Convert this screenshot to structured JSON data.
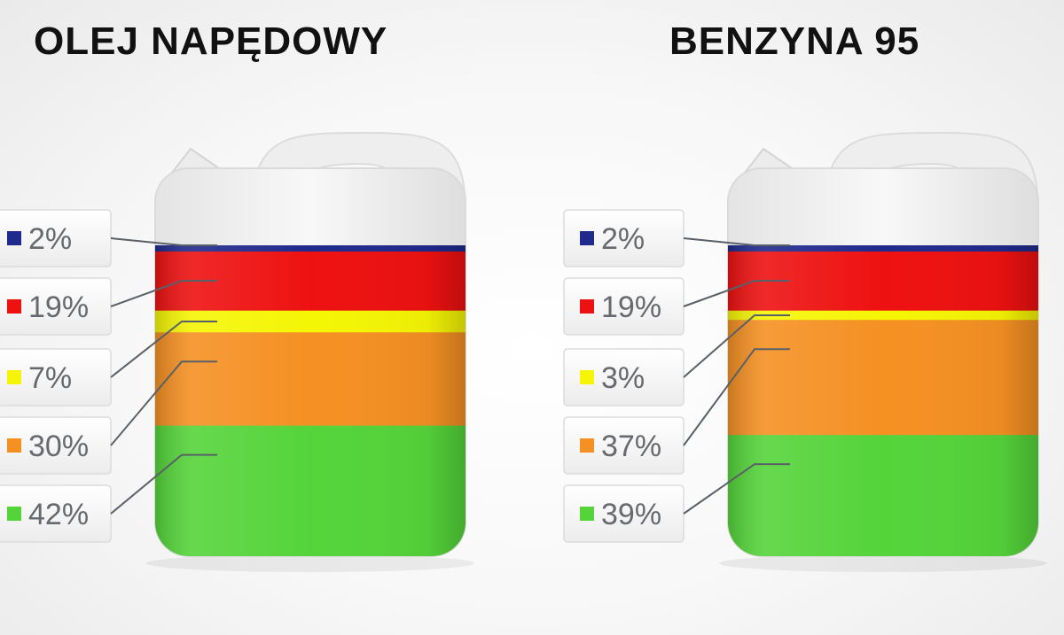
{
  "chart_data": [
    {
      "type": "stacked-bar",
      "title": "OLEJ NAPĘDOWY",
      "segments": [
        {
          "value": 2,
          "label": "2%",
          "color": "#1f2a8c"
        },
        {
          "value": 19,
          "label": "19%",
          "color": "#ee1111"
        },
        {
          "value": 7,
          "label": "7%",
          "color": "#f5f505"
        },
        {
          "value": 30,
          "label": "30%",
          "color": "#f59023"
        },
        {
          "value": 42,
          "label": "42%",
          "color": "#55d43a"
        }
      ]
    },
    {
      "type": "stacked-bar",
      "title": "BENZYNA 95",
      "segments": [
        {
          "value": 2,
          "label": "2%",
          "color": "#1f2a8c"
        },
        {
          "value": 19,
          "label": "19%",
          "color": "#ee1111"
        },
        {
          "value": 3,
          "label": "3%",
          "color": "#f5f505"
        },
        {
          "value": 37,
          "label": "37%",
          "color": "#f59023"
        },
        {
          "value": 39,
          "label": "39%",
          "color": "#55d43a"
        }
      ]
    }
  ]
}
